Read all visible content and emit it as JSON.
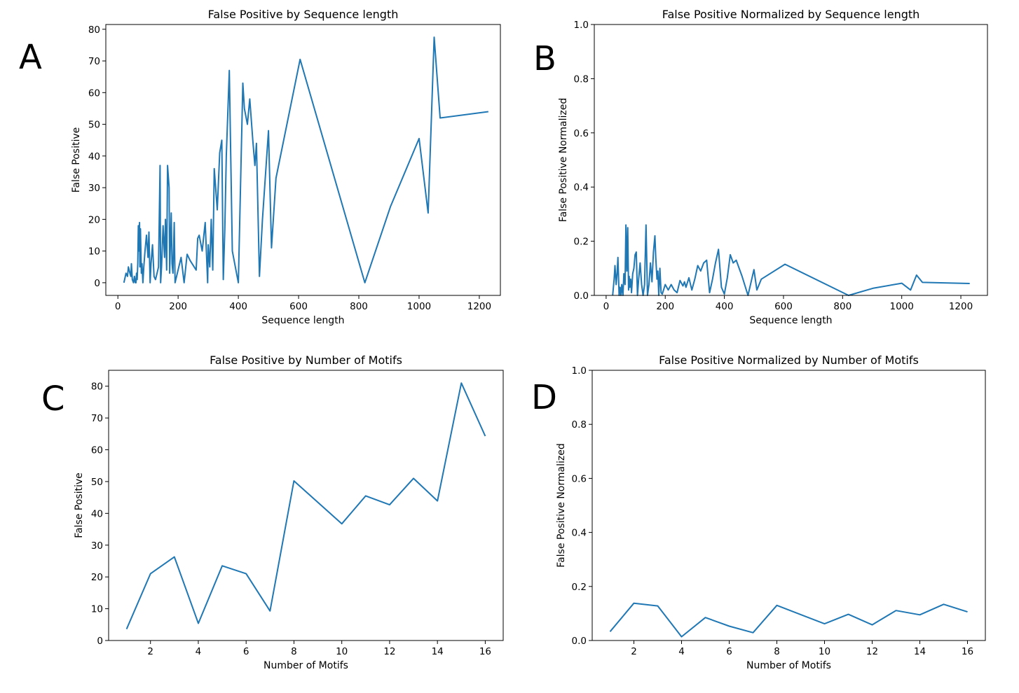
{
  "panel_letters": [
    "A",
    "B",
    "C",
    "D"
  ],
  "chart_data": [
    {
      "type": "line",
      "title": "False Positive by Sequence length",
      "xlabel": "Sequence length",
      "ylabel": "False Positive",
      "xlim": [
        -40,
        1270
      ],
      "ylim": [
        -4,
        81.5
      ],
      "xticks": [
        0,
        200,
        400,
        600,
        800,
        1000,
        1200
      ],
      "yticks": [
        0,
        10,
        20,
        30,
        40,
        50,
        60,
        70,
        80
      ],
      "color": "#1f77b4",
      "x": [
        20,
        27,
        32,
        35,
        40,
        43,
        45,
        48,
        52,
        55,
        58,
        60,
        62,
        64,
        66,
        68,
        70,
        72,
        73,
        75,
        78,
        80,
        83,
        86,
        90,
        95,
        100,
        103,
        107,
        110,
        115,
        120,
        125,
        130,
        135,
        140,
        142,
        145,
        150,
        155,
        158,
        162,
        165,
        170,
        172,
        175,
        177,
        180,
        183,
        187,
        190,
        200,
        210,
        220,
        230,
        240,
        260,
        265,
        270,
        280,
        290,
        298,
        300,
        305,
        310,
        315,
        320,
        330,
        338,
        345,
        350,
        355,
        360,
        370,
        380,
        390,
        400,
        415,
        420,
        430,
        438,
        448,
        455,
        460,
        470,
        480,
        500,
        510,
        525,
        605,
        820,
        905,
        1000,
        1030,
        1050,
        1070,
        1230
      ],
      "y": [
        0,
        3,
        2,
        5,
        3,
        2,
        6,
        1,
        0,
        2,
        0,
        0,
        3,
        1,
        6,
        18,
        10,
        19,
        5,
        17,
        3,
        6,
        0,
        5,
        10,
        15,
        8,
        16,
        0,
        6,
        12,
        2,
        1,
        3,
        5,
        37,
        0,
        5,
        18,
        8,
        20,
        4,
        37,
        30,
        3,
        15,
        22,
        6,
        3,
        19,
        0,
        4,
        8,
        0,
        9,
        7,
        4,
        14,
        15,
        10,
        19,
        0,
        12,
        5,
        20,
        4,
        36,
        23,
        41,
        45,
        1,
        17,
        40,
        67,
        10,
        5,
        0,
        63,
        55,
        50,
        58,
        45,
        37,
        44,
        2,
        20,
        48,
        11,
        33,
        70.5,
        0,
        24,
        45.5,
        22,
        77.5,
        52,
        54
      ]
    },
    {
      "type": "line",
      "title": "False Positive Normalized by Sequence length",
      "xlabel": "Sequence length",
      "ylabel": "False Positive Normalized",
      "xlim": [
        -40,
        1290
      ],
      "ylim": [
        0,
        1.0
      ],
      "xticks": [
        0,
        200,
        400,
        600,
        800,
        1000,
        1200
      ],
      "yticks": [
        0.0,
        0.2,
        0.4,
        0.6,
        0.8,
        1.0
      ],
      "color": "#1f77b4",
      "x": [
        22,
        27,
        30,
        34,
        37,
        40,
        44,
        47,
        50,
        53,
        57,
        60,
        64,
        67,
        70,
        73,
        76,
        78,
        80,
        83,
        86,
        90,
        94,
        98,
        102,
        106,
        110,
        115,
        120,
        125,
        130,
        135,
        140,
        145,
        150,
        155,
        160,
        165,
        168,
        172,
        175,
        178,
        182,
        186,
        190,
        200,
        210,
        220,
        230,
        240,
        250,
        260,
        265,
        270,
        280,
        290,
        300,
        310,
        320,
        330,
        340,
        350,
        360,
        370,
        380,
        390,
        400,
        410,
        420,
        430,
        440,
        460,
        480,
        500,
        510,
        525,
        605,
        820,
        905,
        1000,
        1030,
        1050,
        1070,
        1230
      ],
      "y": [
        0,
        0.06,
        0.11,
        0.04,
        0.08,
        0.14,
        0,
        0.03,
        0,
        0.04,
        0,
        0.08,
        0.04,
        0.26,
        0.09,
        0.25,
        0.02,
        0.07,
        0.03,
        0.06,
        0.01,
        0.08,
        0.1,
        0.15,
        0.16,
        0,
        0.06,
        0.12,
        0.04,
        0,
        0.04,
        0.26,
        0,
        0.04,
        0.12,
        0.05,
        0.16,
        0.22,
        0.14,
        0.06,
        0.09,
        0,
        0.1,
        0.01,
        0.005,
        0.04,
        0.02,
        0.04,
        0.02,
        0.01,
        0.055,
        0.035,
        0.05,
        0.03,
        0.065,
        0.02,
        0.06,
        0.11,
        0.09,
        0.12,
        0.13,
        0.01,
        0.06,
        0.12,
        0.17,
        0.03,
        0.005,
        0.065,
        0.15,
        0.12,
        0.13,
        0.07,
        0,
        0.095,
        0.02,
        0.06,
        0.115,
        0,
        0.027,
        0.045,
        0.02,
        0.075,
        0.048,
        0.044
      ]
    },
    {
      "type": "line",
      "title": "False Positive by Number of Motifs",
      "xlabel": "Number of Motifs",
      "ylabel": "False Positive",
      "xlim": [
        0.25,
        16.75
      ],
      "ylim": [
        0,
        85
      ],
      "xticks": [
        2,
        4,
        6,
        8,
        10,
        12,
        14,
        16
      ],
      "yticks": [
        0,
        10,
        20,
        30,
        40,
        50,
        60,
        70,
        80
      ],
      "color": "#1f77b4",
      "x": [
        1,
        2,
        3,
        4,
        5,
        6,
        7,
        8,
        10,
        11,
        12,
        13,
        14,
        15,
        16
      ],
      "y": [
        3.6,
        21,
        26.3,
        5.4,
        23.5,
        21,
        9.3,
        50.2,
        36.7,
        45.5,
        42.7,
        51,
        43.9,
        81,
        64.3
      ]
    },
    {
      "type": "line",
      "title": "False Positive Normalized by Number of Motifs",
      "xlabel": "Number of Motifs",
      "ylabel": "False Positive Normalized",
      "xlim": [
        0.25,
        16.75
      ],
      "ylim": [
        0,
        1.0
      ],
      "xticks": [
        2,
        4,
        6,
        8,
        10,
        12,
        14,
        16
      ],
      "yticks": [
        0.0,
        0.2,
        0.4,
        0.6,
        0.8,
        1.0
      ],
      "color": "#1f77b4",
      "x": [
        1,
        2,
        3,
        4,
        5,
        6,
        7,
        8,
        10,
        11,
        12,
        13,
        14,
        15,
        16
      ],
      "y": [
        0.033,
        0.138,
        0.128,
        0.014,
        0.085,
        0.053,
        0.029,
        0.13,
        0.062,
        0.097,
        0.058,
        0.111,
        0.095,
        0.134,
        0.106
      ]
    }
  ]
}
